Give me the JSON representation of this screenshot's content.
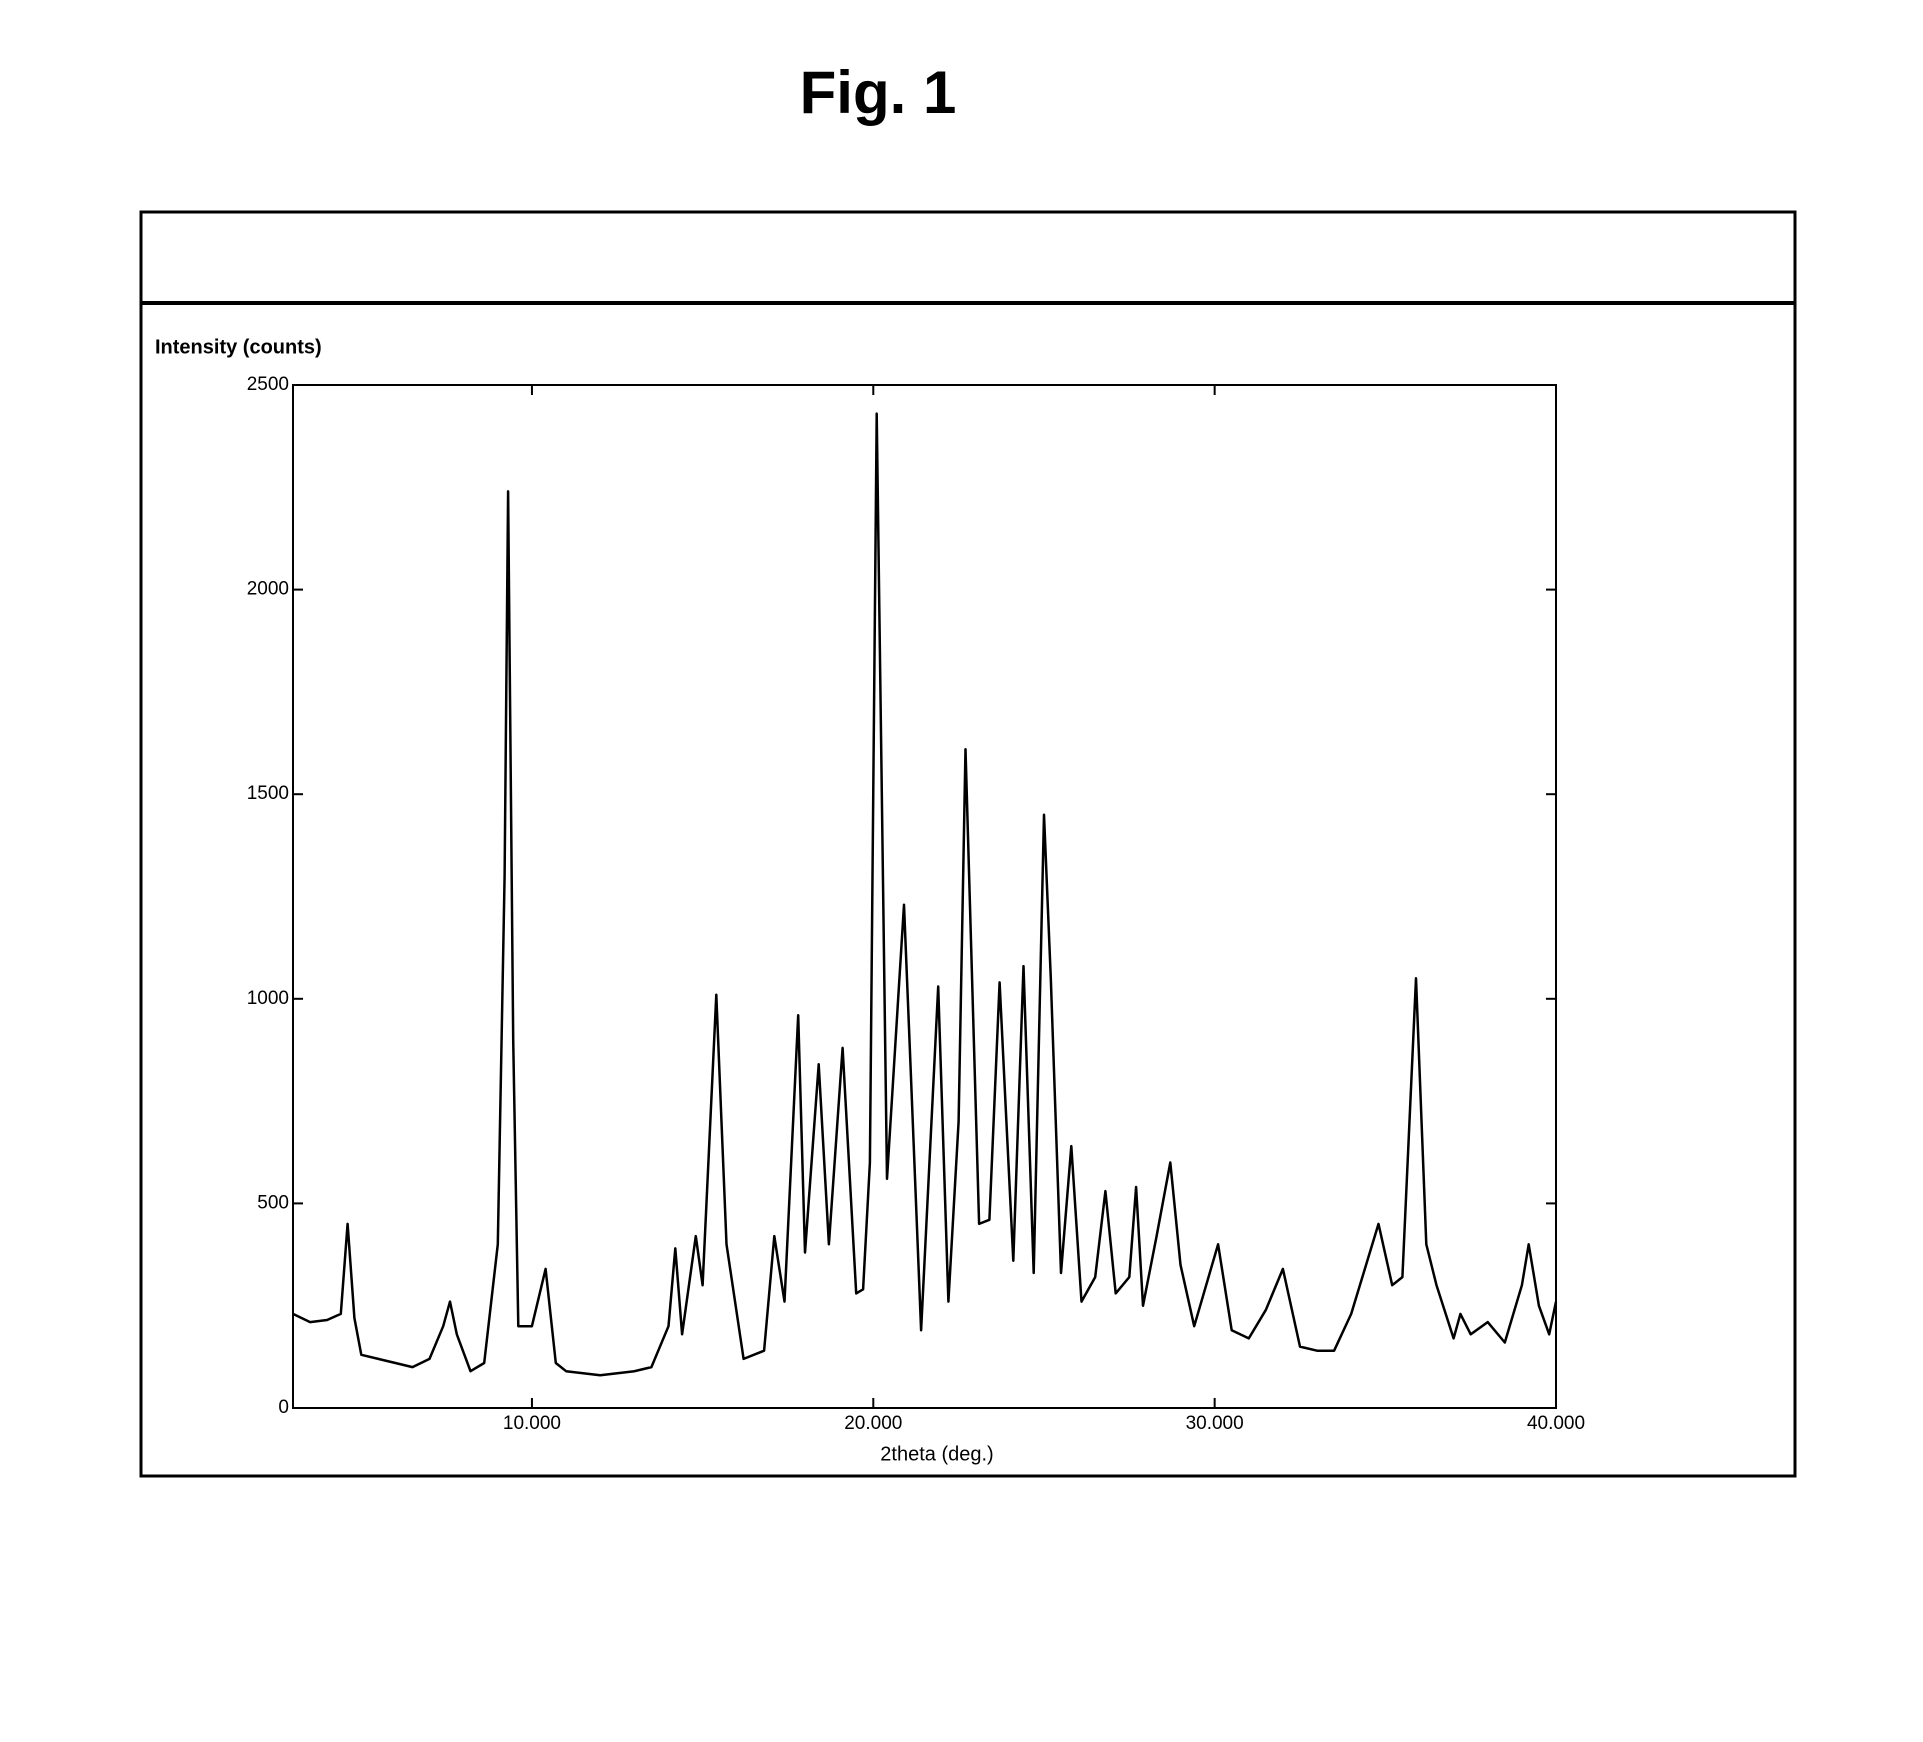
{
  "chart_data": {
    "type": "line",
    "title": "Fig. 1",
    "y_label": "Intensity (counts)",
    "x_label": "2theta (deg.)",
    "xlim": [
      3,
      40
    ],
    "ylim": [
      0,
      2500
    ],
    "xticks": [
      {
        "value": 10,
        "label": "10.000"
      },
      {
        "value": 20,
        "label": "20.000"
      },
      {
        "value": 30,
        "label": "30.000"
      },
      {
        "value": 40,
        "label": "40.000"
      }
    ],
    "yticks": [
      0,
      500,
      1000,
      1500,
      2000,
      2500
    ],
    "color": "#000000",
    "x": [
      3.0,
      3.5,
      4.0,
      4.4,
      4.6,
      4.8,
      5.0,
      5.5,
      6.0,
      6.5,
      7.0,
      7.4,
      7.6,
      7.8,
      8.2,
      8.6,
      9.0,
      9.2,
      9.3,
      9.45,
      9.6,
      10.0,
      10.4,
      10.7,
      11.0,
      11.5,
      12.0,
      12.5,
      13.0,
      13.5,
      14.0,
      14.2,
      14.4,
      14.8,
      15.0,
      15.4,
      15.7,
      16.2,
      16.8,
      17.1,
      17.4,
      17.8,
      18.0,
      18.4,
      18.7,
      19.1,
      19.5,
      19.7,
      19.9,
      20.1,
      20.4,
      20.9,
      21.1,
      21.4,
      21.9,
      22.2,
      22.5,
      22.7,
      23.1,
      23.4,
      23.7,
      23.9,
      24.1,
      24.4,
      24.7,
      25.0,
      25.2,
      25.5,
      25.8,
      26.1,
      26.5,
      26.8,
      27.1,
      27.5,
      27.7,
      27.9,
      28.3,
      28.7,
      29.0,
      29.4,
      30.1,
      30.5,
      31.0,
      31.5,
      32.0,
      32.5,
      33.0,
      33.5,
      34.0,
      34.8,
      35.2,
      35.5,
      35.9,
      36.2,
      36.5,
      37.0,
      37.2,
      37.5,
      38.0,
      38.5,
      39.0,
      39.2,
      39.5,
      39.8,
      40.0
    ],
    "values": [
      230,
      210,
      215,
      230,
      450,
      220,
      130,
      120,
      110,
      100,
      120,
      200,
      260,
      180,
      90,
      110,
      400,
      1300,
      2240,
      900,
      200,
      200,
      340,
      110,
      90,
      85,
      80,
      85,
      90,
      100,
      200,
      390,
      180,
      420,
      300,
      1010,
      400,
      120,
      140,
      420,
      260,
      960,
      380,
      840,
      400,
      880,
      280,
      290,
      600,
      2430,
      560,
      1230,
      820,
      190,
      1030,
      260,
      700,
      1610,
      450,
      460,
      1040,
      700,
      360,
      1080,
      330,
      1450,
      1050,
      330,
      640,
      260,
      320,
      530,
      280,
      320,
      540,
      250,
      420,
      600,
      350,
      200,
      400,
      190,
      170,
      240,
      340,
      150,
      140,
      140,
      230,
      450,
      300,
      320,
      1050,
      400,
      300,
      170,
      230,
      180,
      210,
      160,
      300,
      400,
      250,
      180,
      260
    ]
  }
}
